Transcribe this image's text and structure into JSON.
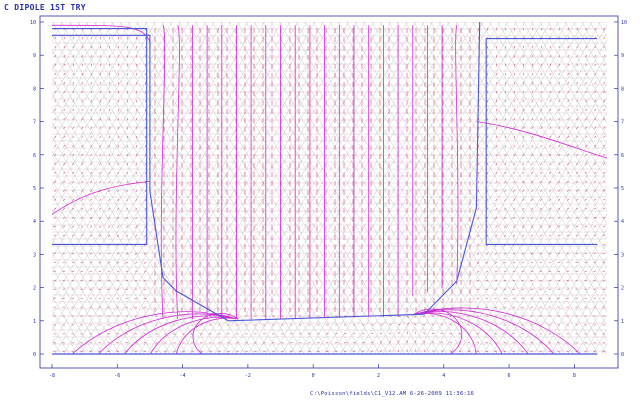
{
  "title": "C DIPOLE 1ST TRY",
  "footer": "C:\\Poisson\\fields\\C1_V12.AM  6-26-2009  11:36:16",
  "colors": {
    "frame": "#2a2fa8",
    "iron_boundary": "#4a56d8",
    "mesh": "#b9a9b0",
    "field_lines": "#d02ad4",
    "arrows": "#c3164e"
  },
  "chart_data": {
    "type": "field_plot",
    "x_range": [
      -8,
      9
    ],
    "y_range": [
      0,
      10
    ],
    "x_ticks": [
      -8,
      -6,
      -4,
      -2,
      0,
      2,
      4,
      6,
      8
    ],
    "y_ticks": [
      0,
      1,
      2,
      3,
      4,
      5,
      6,
      7,
      8,
      9,
      10
    ],
    "iron_left_outline": [
      [
        -8,
        9.6
      ],
      [
        -5,
        9.6
      ],
      [
        -5,
        4.9
      ],
      [
        -4.6,
        2.3
      ],
      [
        -4.2,
        1.9
      ],
      [
        -2.6,
        1.0
      ],
      [
        3.4,
        1.2
      ],
      [
        4.4,
        2.2
      ],
      [
        5.0,
        4.4
      ],
      [
        5.1,
        10
      ]
    ],
    "left_pocket": [
      [
        -8,
        9.8
      ],
      [
        -5.1,
        9.8
      ],
      [
        -5.1,
        3.3
      ],
      [
        -8,
        3.3
      ]
    ],
    "right_pocket": [
      [
        8.7,
        9.5
      ],
      [
        5.3,
        9.5
      ],
      [
        5.3,
        3.3
      ],
      [
        8.7,
        3.3
      ]
    ],
    "base_line": [
      [
        -8,
        0
      ],
      [
        8.7,
        0
      ]
    ]
  }
}
